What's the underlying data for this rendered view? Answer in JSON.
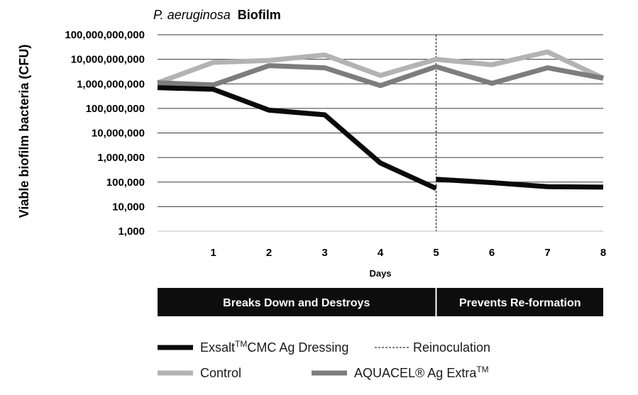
{
  "chart_data": {
    "type": "line",
    "title_italic": "P. aeruginosa",
    "title_bold": "Biofilm",
    "ylabel": "Viable biofilm bacteria (CFU)",
    "xlabel": "Days",
    "y_scale": "log",
    "ylim": [
      1000,
      100000000000
    ],
    "y_ticks": [
      1000,
      10000,
      100000,
      1000000,
      10000000,
      100000000,
      1000000000,
      10000000000,
      100000000000
    ],
    "y_tick_labels": [
      "1,000",
      "10,000",
      "100,000",
      "1,000,000",
      "10,000,000",
      "100,000,000",
      "1,000,000,000",
      "10,000,000,000",
      "100,000,000,000"
    ],
    "xlim": [
      0,
      8
    ],
    "x_ticks": [
      1,
      2,
      3,
      4,
      5,
      6,
      7,
      8
    ],
    "x_tick_labels": [
      "1",
      "2",
      "3",
      "4",
      "5",
      "6",
      "7",
      "8"
    ],
    "grid": "horizontal",
    "reinoculation_day": 5,
    "series": [
      {
        "name": "Control",
        "color": "#b3b3b3",
        "segments": [
          [
            [
              0,
              1100000000
            ],
            [
              1,
              7500000000
            ],
            [
              2,
              9000000000
            ],
            [
              3,
              15000000000
            ],
            [
              4,
              2200000000
            ],
            [
              5,
              10000000000
            ],
            [
              6,
              6000000000
            ],
            [
              7,
              20000000000
            ],
            [
              8,
              1700000000
            ]
          ]
        ]
      },
      {
        "name": "AQUACEL® Ag Extra™",
        "color": "#7d7d7d",
        "segments": [
          [
            [
              0,
              1100000000
            ],
            [
              1,
              900000000
            ],
            [
              2,
              5500000000
            ],
            [
              3,
              4500000000
            ],
            [
              4,
              850000000
            ],
            [
              5,
              5000000000
            ],
            [
              6,
              1050000000
            ],
            [
              7,
              4500000000
            ],
            [
              8,
              1700000000
            ]
          ]
        ]
      },
      {
        "name": "Exsalt™CMC Ag Dressing",
        "color": "#0a0a0a",
        "segments": [
          [
            [
              0,
              700000000
            ],
            [
              1,
              600000000
            ],
            [
              2,
              85000000
            ],
            [
              3,
              55000000
            ],
            [
              4,
              600000
            ],
            [
              5,
              55000
            ]
          ],
          [
            [
              5,
              130000
            ],
            [
              6,
              95000
            ],
            [
              7,
              65000
            ],
            [
              8,
              62000
            ]
          ]
        ]
      }
    ],
    "phases": [
      {
        "label": "Breaks Down and Destroys",
        "from": 0,
        "to": 5
      },
      {
        "label": "Prevents Re-formation",
        "from": 5,
        "to": 8
      }
    ],
    "legend": [
      {
        "label_main": "Exsalt",
        "label_sup": "TM",
        "label_rest": "CMC Ag Dressing",
        "style": "solid",
        "color": "#0a0a0a"
      },
      {
        "label_main": "Reinoculation",
        "label_sup": "",
        "label_rest": "",
        "style": "dashed",
        "color": "#000000"
      },
      {
        "label_main": "Control",
        "label_sup": "",
        "label_rest": "",
        "style": "solid",
        "color": "#b3b3b3"
      },
      {
        "label_main": "AQUACEL® Ag Extra",
        "label_sup": "TM",
        "label_rest": "",
        "style": "solid",
        "color": "#7d7d7d"
      }
    ]
  }
}
